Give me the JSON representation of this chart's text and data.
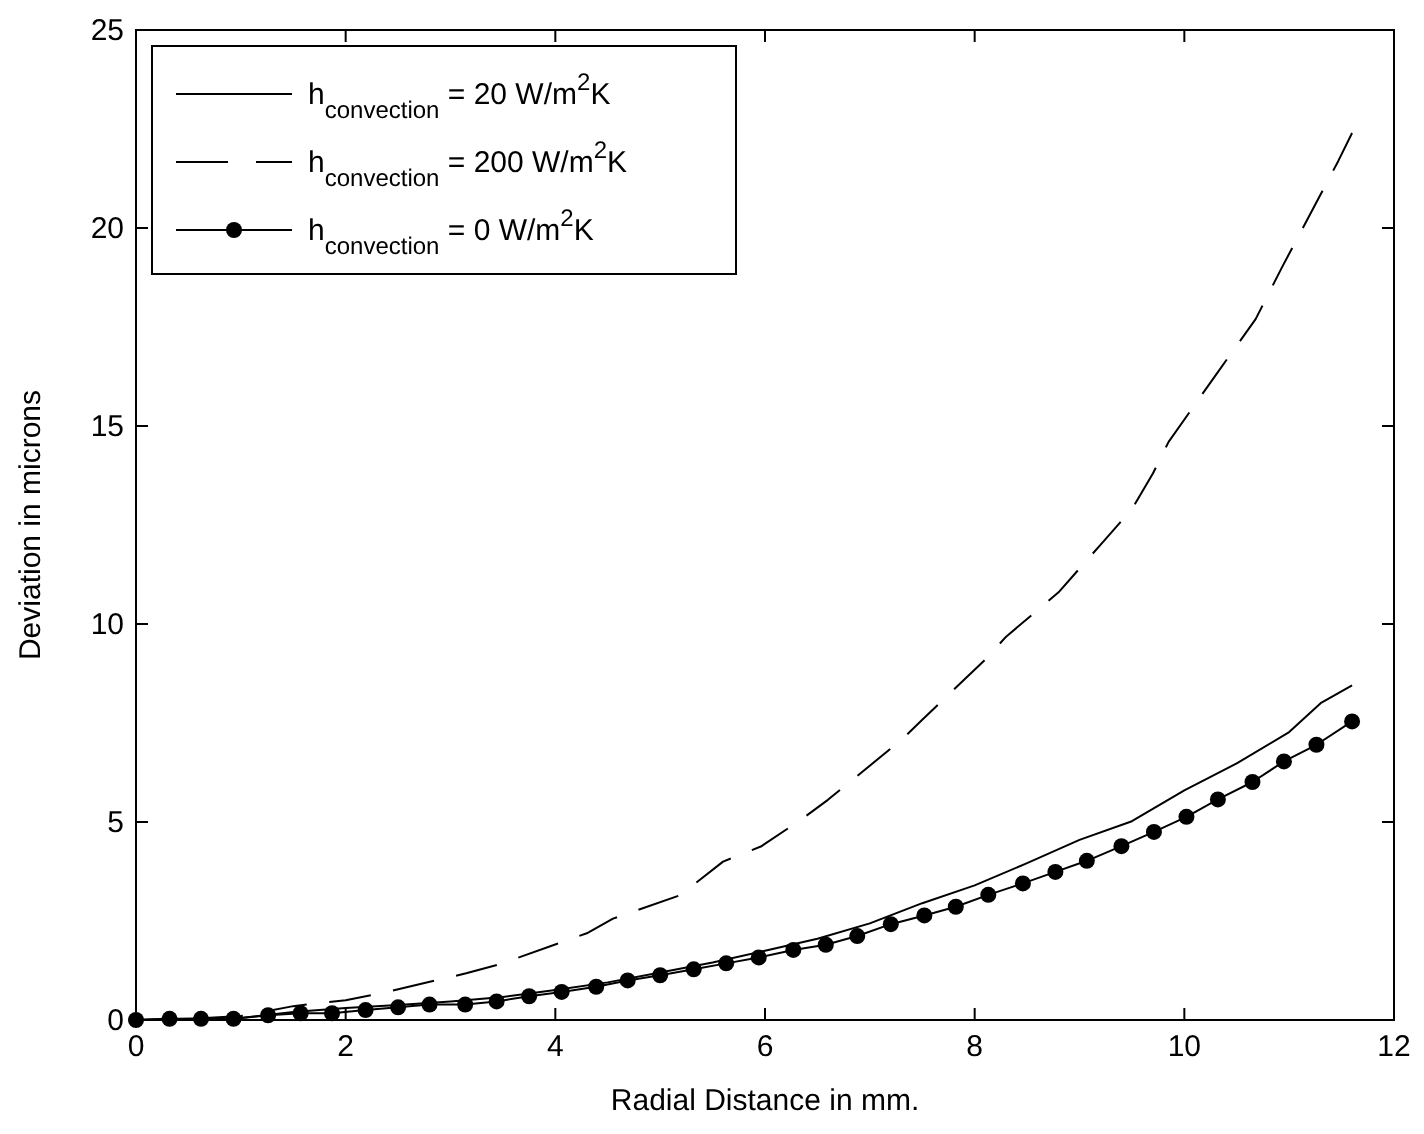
{
  "chart_data": {
    "type": "line",
    "xlabel": "Radial Distance in mm.",
    "ylabel": "Deviation in microns",
    "xlim": [
      0,
      12
    ],
    "ylim": [
      0,
      25
    ],
    "xticks": [
      0,
      2,
      4,
      6,
      8,
      10,
      12
    ],
    "yticks": [
      0,
      5,
      10,
      15,
      20,
      25
    ],
    "grid": false,
    "legend": "top left",
    "series": [
      {
        "name": "h$_{convection}$ = 20 W/m$^{2}$K",
        "color": "#000000",
        "line_style": "solid",
        "marker": "none",
        "x": [
          0,
          0.5,
          1,
          1.5,
          2,
          2.5,
          3,
          3.5,
          4,
          4.5,
          5,
          5.5,
          6,
          6.5,
          7,
          7.5,
          8,
          8.5,
          9,
          9.5,
          10,
          10.5,
          11,
          11.3,
          11.6
        ],
        "values": [
          0,
          0.03,
          0.05,
          0.2,
          0.3,
          0.38,
          0.47,
          0.58,
          0.76,
          0.95,
          1.2,
          1.45,
          1.75,
          2.05,
          2.44,
          2.95,
          3.4,
          3.96,
          4.55,
          5.02,
          5.8,
          6.48,
          7.27,
          8.0,
          8.45
        ]
      },
      {
        "name": "h$_{convection}$ = 200 W/m$^{2}$K",
        "color": "#000000",
        "line_style": "dashed",
        "marker": "none",
        "x": [
          0,
          0.5,
          1,
          1.5,
          2,
          2.33,
          3.15,
          3.47,
          4.3,
          4.55,
          5.19,
          5.6,
          5.96,
          6.34,
          6.6,
          7.3,
          7.5,
          8.1,
          8.3,
          8.8,
          9.2,
          9.5,
          9.7,
          9.85,
          10.33,
          10.68,
          10.93,
          11.09,
          11.47,
          11.6
        ],
        "values": [
          0,
          0.03,
          0.1,
          0.35,
          0.5,
          0.67,
          1.18,
          1.41,
          2.19,
          2.56,
          3.15,
          4.0,
          4.38,
          5.05,
          5.56,
          7.07,
          7.58,
          9.1,
          9.68,
          10.8,
          12.0,
          12.9,
          13.8,
          14.6,
          16.4,
          17.7,
          19.0,
          19.8,
          21.7,
          22.4
        ]
      },
      {
        "name": "h$_{convection}$ = 0 W/m$^{2}$K",
        "color": "#000000",
        "line_style": "solid",
        "marker": "circle",
        "x": [
          0,
          0.32,
          0.62,
          0.93,
          1.26,
          1.57,
          1.87,
          2.19,
          2.5,
          2.8,
          3.14,
          3.44,
          3.75,
          4.06,
          4.39,
          4.69,
          5.0,
          5.32,
          5.63,
          5.94,
          6.27,
          6.58,
          6.88,
          7.2,
          7.52,
          7.82,
          8.13,
          8.46,
          8.77,
          9.07,
          9.4,
          9.71,
          10.02,
          10.32,
          10.65,
          10.95,
          11.26,
          11.6
        ],
        "values": [
          0,
          0.03,
          0.03,
          0.03,
          0.12,
          0.17,
          0.17,
          0.25,
          0.32,
          0.39,
          0.39,
          0.47,
          0.6,
          0.71,
          0.84,
          1.0,
          1.13,
          1.28,
          1.43,
          1.58,
          1.77,
          1.9,
          2.12,
          2.42,
          2.64,
          2.86,
          3.16,
          3.45,
          3.74,
          4.02,
          4.39,
          4.75,
          5.13,
          5.57,
          6.01,
          6.53,
          6.95,
          7.54
        ]
      }
    ]
  }
}
